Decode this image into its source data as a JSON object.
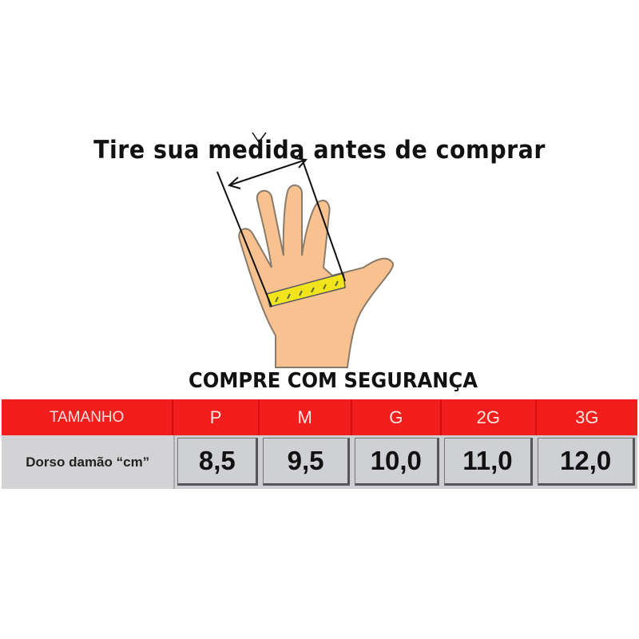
{
  "title": "Tire sua medida antes de comprar",
  "subtitle": "COMPRE COM SEGURANÇA",
  "table": {
    "header": [
      "TAMANHO",
      "P",
      "M",
      "G",
      "2G",
      "3G"
    ],
    "row_label_line1": "Dorso da",
    "row_label_line2": "mão “cm”",
    "values": [
      "8,5",
      "9,5",
      "10,0",
      "11,0",
      "12,0"
    ]
  },
  "colors": {
    "header_red": "#f21d1d",
    "cell_gray": "#cfd0d4",
    "skin": "#f7c28f",
    "tape": "#f2e41c"
  }
}
